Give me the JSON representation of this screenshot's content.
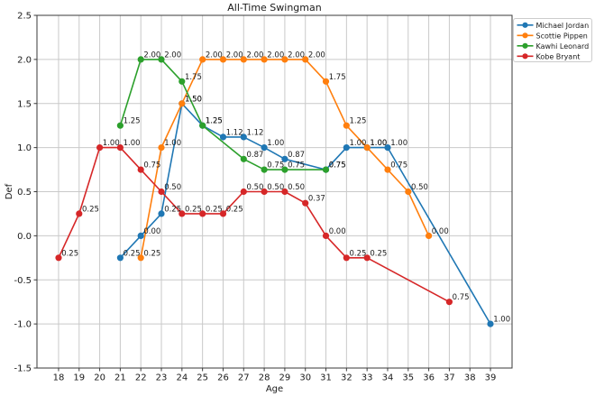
{
  "figure": {
    "background": "#ffffff"
  },
  "chart_data": {
    "type": "line",
    "title": "All-Time Swingman",
    "xlabel": "Age",
    "ylabel": "Def",
    "xlim": [
      16.95,
      40.05
    ],
    "ylim": [
      -1.5,
      2.5
    ],
    "xticks": [
      18,
      19,
      20,
      21,
      22,
      23,
      24,
      25,
      26,
      27,
      28,
      29,
      30,
      31,
      32,
      33,
      34,
      35,
      36,
      37,
      38,
      39
    ],
    "yticks": [
      -1.5,
      -1.0,
      -0.5,
      0.0,
      0.5,
      1.0,
      1.5,
      2.0,
      2.5
    ],
    "grid": true,
    "grid_color": "#c9c9c9",
    "spine_color": "#3a3a3a",
    "annotation_color": "#1a1a1a",
    "legend": {
      "position": "outside-top-right",
      "entries": [
        "Michael Jordan",
        "Scottie Pippen",
        "Kawhi Leonard",
        "Kobe Bryant"
      ]
    },
    "series": [
      {
        "name": "Michael Jordan",
        "color": "#1f77b4",
        "points": [
          {
            "x": 21,
            "y": -0.25,
            "label": "0.25"
          },
          {
            "x": 22,
            "y": 0.0,
            "label": "0.00"
          },
          {
            "x": 23,
            "y": 0.25,
            "label": "0.25"
          },
          {
            "x": 24,
            "y": 1.5,
            "label": "1.50"
          },
          {
            "x": 25,
            "y": 1.25,
            "label": "1.25"
          },
          {
            "x": 26,
            "y": 1.12,
            "label": "1.12"
          },
          {
            "x": 27,
            "y": 1.12,
            "label": "1.12"
          },
          {
            "x": 28,
            "y": 1.0,
            "label": "1.00"
          },
          {
            "x": 29,
            "y": 0.87,
            "label": "0.87"
          },
          {
            "x": 31,
            "y": 0.75,
            "label": "0.75"
          },
          {
            "x": 32,
            "y": 1.0,
            "label": "1.00"
          },
          {
            "x": 33,
            "y": 1.0,
            "label": "1.00"
          },
          {
            "x": 34,
            "y": 1.0,
            "label": "1.00"
          },
          {
            "x": 39,
            "y": -1.0,
            "label": "1.00"
          }
        ]
      },
      {
        "name": "Scottie Pippen",
        "color": "#ff7f0e",
        "points": [
          {
            "x": 22,
            "y": -0.25,
            "label": "0.25"
          },
          {
            "x": 23,
            "y": 1.0,
            "label": "1.00"
          },
          {
            "x": 24,
            "y": 1.5,
            "label": "1.50"
          },
          {
            "x": 25,
            "y": 2.0,
            "label": "2.00"
          },
          {
            "x": 26,
            "y": 2.0,
            "label": "2.00"
          },
          {
            "x": 27,
            "y": 2.0,
            "label": "2.00"
          },
          {
            "x": 28,
            "y": 2.0,
            "label": "2.00"
          },
          {
            "x": 29,
            "y": 2.0,
            "label": "2.00"
          },
          {
            "x": 30,
            "y": 2.0,
            "label": "2.00"
          },
          {
            "x": 31,
            "y": 1.75,
            "label": "1.75"
          },
          {
            "x": 32,
            "y": 1.25,
            "label": "1.25"
          },
          {
            "x": 33,
            "y": 1.0,
            "label": "1.00"
          },
          {
            "x": 34,
            "y": 0.75,
            "label": "0.75"
          },
          {
            "x": 35,
            "y": 0.5,
            "label": "0.50"
          },
          {
            "x": 36,
            "y": 0.0,
            "label": "0.00"
          }
        ]
      },
      {
        "name": "Kawhi Leonard",
        "color": "#2ca02c",
        "points": [
          {
            "x": 21,
            "y": 1.25,
            "label": "1.25"
          },
          {
            "x": 22,
            "y": 2.0,
            "label": "2.00"
          },
          {
            "x": 23,
            "y": 2.0,
            "label": "2.00"
          },
          {
            "x": 24,
            "y": 1.75,
            "label": "1.75"
          },
          {
            "x": 25,
            "y": 1.25,
            "label": "1.25"
          },
          {
            "x": 27,
            "y": 0.87,
            "label": "0.87"
          },
          {
            "x": 28,
            "y": 0.75,
            "label": "0.75"
          },
          {
            "x": 29,
            "y": 0.75,
            "label": "0.75"
          },
          {
            "x": 31,
            "y": 0.75,
            "label": "0.75"
          }
        ]
      },
      {
        "name": "Kobe Bryant",
        "color": "#d62728",
        "points": [
          {
            "x": 18,
            "y": -0.25,
            "label": "0.25"
          },
          {
            "x": 19,
            "y": 0.25,
            "label": "0.25"
          },
          {
            "x": 20,
            "y": 1.0,
            "label": "1.00"
          },
          {
            "x": 21,
            "y": 1.0,
            "label": "1.00"
          },
          {
            "x": 22,
            "y": 0.75,
            "label": "0.75"
          },
          {
            "x": 23,
            "y": 0.5,
            "label": "0.50"
          },
          {
            "x": 24,
            "y": 0.25,
            "label": "0.25"
          },
          {
            "x": 25,
            "y": 0.25,
            "label": "0.25"
          },
          {
            "x": 26,
            "y": 0.25,
            "label": "0.25"
          },
          {
            "x": 27,
            "y": 0.5,
            "label": "0.50"
          },
          {
            "x": 28,
            "y": 0.5,
            "label": "0.50"
          },
          {
            "x": 29,
            "y": 0.5,
            "label": "0.50"
          },
          {
            "x": 30,
            "y": 0.37,
            "label": "0.37"
          },
          {
            "x": 31,
            "y": 0.0,
            "label": "0.00"
          },
          {
            "x": 32,
            "y": -0.25,
            "label": "0.25"
          },
          {
            "x": 33,
            "y": -0.25,
            "label": "0.25"
          },
          {
            "x": 37,
            "y": -0.75,
            "label": "0.75"
          }
        ]
      }
    ]
  }
}
